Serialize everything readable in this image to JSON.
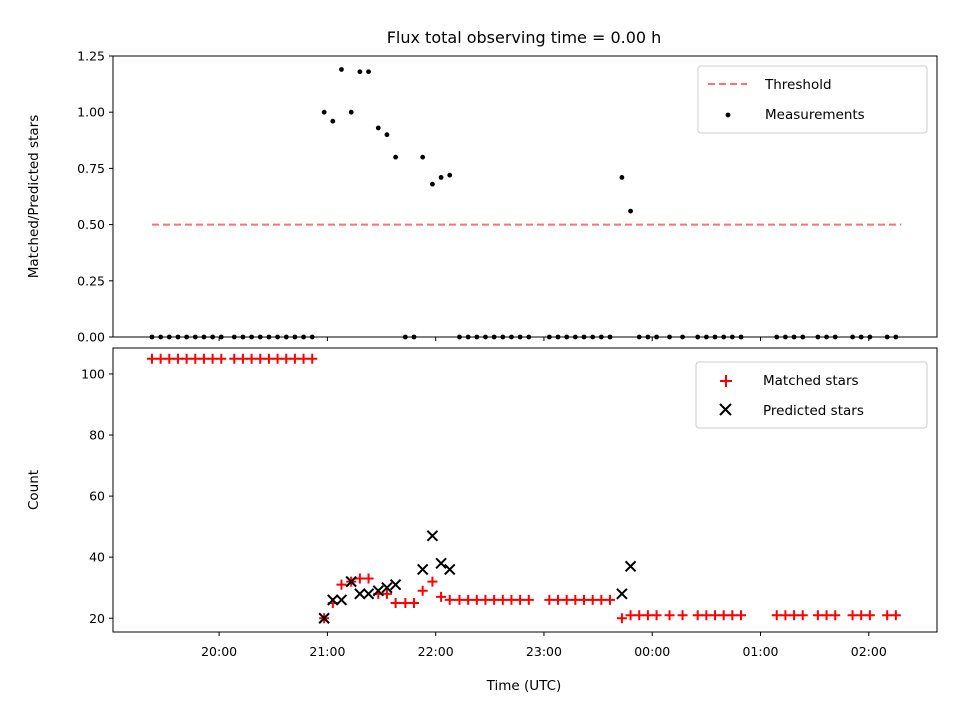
{
  "chart_data": {
    "title": "Flux total observing time = 0.00 h",
    "xlabel": "Time (UTC)",
    "x_ticks": [
      "20:00",
      "21:00",
      "22:00",
      "23:00",
      "00:00",
      "01:00",
      "02:00"
    ],
    "x_tick_values_hours": [
      20,
      21,
      22,
      23,
      24,
      25,
      26
    ],
    "x_range_hours": [
      19.02,
      26.63
    ],
    "panels": [
      {
        "type": "scatter",
        "ylabel": "Matched/Predicted stars",
        "ylim": [
          0,
          1.25
        ],
        "y_ticks": [
          "0.00",
          "0.25",
          "0.50",
          "0.75",
          "1.00",
          "1.25"
        ],
        "legend_position": "top-right",
        "threshold": {
          "name": "Threshold",
          "value": 0.5,
          "x_start_hours": 19.38,
          "x_end_hours": 26.3,
          "color": "#ff6f6f",
          "style": "dashed"
        },
        "series": [
          {
            "name": "Measurements",
            "color": "#000000",
            "marker": "dot",
            "points": [
              [
                19.38,
                0
              ],
              [
                19.46,
                0
              ],
              [
                19.54,
                0
              ],
              [
                19.62,
                0
              ],
              [
                19.7,
                0
              ],
              [
                19.78,
                0
              ],
              [
                19.86,
                0
              ],
              [
                19.94,
                0
              ],
              [
                20.02,
                0
              ],
              [
                20.14,
                0
              ],
              [
                20.22,
                0
              ],
              [
                20.3,
                0
              ],
              [
                20.38,
                0
              ],
              [
                20.46,
                0
              ],
              [
                20.54,
                0
              ],
              [
                20.62,
                0
              ],
              [
                20.7,
                0
              ],
              [
                20.78,
                0
              ],
              [
                20.86,
                0
              ],
              [
                20.97,
                1.0
              ],
              [
                21.05,
                0.96
              ],
              [
                21.13,
                1.19
              ],
              [
                21.22,
                1.0
              ],
              [
                21.3,
                1.18
              ],
              [
                21.38,
                1.18
              ],
              [
                21.47,
                0.93
              ],
              [
                21.55,
                0.9
              ],
              [
                21.63,
                0.8
              ],
              [
                21.72,
                0
              ],
              [
                21.8,
                0
              ],
              [
                21.88,
                0.8
              ],
              [
                21.97,
                0.68
              ],
              [
                22.05,
                0.71
              ],
              [
                22.13,
                0.72
              ],
              [
                22.22,
                0
              ],
              [
                22.3,
                0
              ],
              [
                22.38,
                0
              ],
              [
                22.46,
                0
              ],
              [
                22.54,
                0
              ],
              [
                22.62,
                0
              ],
              [
                22.7,
                0
              ],
              [
                22.78,
                0
              ],
              [
                22.86,
                0
              ],
              [
                23.05,
                0
              ],
              [
                23.13,
                0
              ],
              [
                23.21,
                0
              ],
              [
                23.29,
                0
              ],
              [
                23.37,
                0
              ],
              [
                23.45,
                0
              ],
              [
                23.53,
                0
              ],
              [
                23.61,
                0
              ],
              [
                23.72,
                0.71
              ],
              [
                23.8,
                0.56
              ],
              [
                23.88,
                0
              ],
              [
                23.96,
                0
              ],
              [
                24.04,
                0
              ],
              [
                24.16,
                0
              ],
              [
                24.28,
                0
              ],
              [
                24.42,
                0
              ],
              [
                24.5,
                0
              ],
              [
                24.58,
                0
              ],
              [
                24.66,
                0
              ],
              [
                24.74,
                0
              ],
              [
                24.82,
                0
              ],
              [
                25.15,
                0
              ],
              [
                25.23,
                0
              ],
              [
                25.31,
                0
              ],
              [
                25.39,
                0
              ],
              [
                25.53,
                0
              ],
              [
                25.61,
                0
              ],
              [
                25.69,
                0
              ],
              [
                25.85,
                0
              ],
              [
                25.93,
                0
              ],
              [
                26.01,
                0
              ],
              [
                26.17,
                0
              ],
              [
                26.25,
                0
              ]
            ]
          }
        ]
      },
      {
        "type": "scatter",
        "ylabel": "Count",
        "ylim": [
          15.5,
          108.5
        ],
        "y_ticks": [
          "20",
          "40",
          "60",
          "80",
          "100"
        ],
        "y_tick_values": [
          20,
          40,
          60,
          80,
          100
        ],
        "legend_position": "top-right",
        "series": [
          {
            "name": "Matched stars",
            "color": "#ff0000",
            "marker": "plus",
            "points": [
              [
                19.38,
                105
              ],
              [
                19.46,
                105
              ],
              [
                19.54,
                105
              ],
              [
                19.62,
                105
              ],
              [
                19.7,
                105
              ],
              [
                19.78,
                105
              ],
              [
                19.86,
                105
              ],
              [
                19.94,
                105
              ],
              [
                20.02,
                105
              ],
              [
                20.14,
                105
              ],
              [
                20.22,
                105
              ],
              [
                20.3,
                105
              ],
              [
                20.38,
                105
              ],
              [
                20.46,
                105
              ],
              [
                20.54,
                105
              ],
              [
                20.62,
                105
              ],
              [
                20.7,
                105
              ],
              [
                20.78,
                105
              ],
              [
                20.86,
                105
              ],
              [
                20.97,
                20
              ],
              [
                21.05,
                25
              ],
              [
                21.13,
                31
              ],
              [
                21.22,
                32
              ],
              [
                21.3,
                33
              ],
              [
                21.38,
                33
              ],
              [
                21.47,
                28
              ],
              [
                21.55,
                28
              ],
              [
                21.63,
                25
              ],
              [
                21.72,
                25
              ],
              [
                21.8,
                25
              ],
              [
                21.88,
                29
              ],
              [
                21.97,
                32
              ],
              [
                22.05,
                27
              ],
              [
                22.13,
                26
              ],
              [
                22.22,
                26
              ],
              [
                22.3,
                26
              ],
              [
                22.38,
                26
              ],
              [
                22.46,
                26
              ],
              [
                22.54,
                26
              ],
              [
                22.62,
                26
              ],
              [
                22.7,
                26
              ],
              [
                22.78,
                26
              ],
              [
                22.86,
                26
              ],
              [
                23.05,
                26
              ],
              [
                23.13,
                26
              ],
              [
                23.21,
                26
              ],
              [
                23.29,
                26
              ],
              [
                23.37,
                26
              ],
              [
                23.45,
                26
              ],
              [
                23.53,
                26
              ],
              [
                23.61,
                26
              ],
              [
                23.72,
                20
              ],
              [
                23.8,
                21
              ],
              [
                23.88,
                21
              ],
              [
                23.96,
                21
              ],
              [
                24.04,
                21
              ],
              [
                24.16,
                21
              ],
              [
                24.28,
                21
              ],
              [
                24.42,
                21
              ],
              [
                24.5,
                21
              ],
              [
                24.58,
                21
              ],
              [
                24.66,
                21
              ],
              [
                24.74,
                21
              ],
              [
                24.82,
                21
              ],
              [
                25.15,
                21
              ],
              [
                25.23,
                21
              ],
              [
                25.31,
                21
              ],
              [
                25.39,
                21
              ],
              [
                25.53,
                21
              ],
              [
                25.61,
                21
              ],
              [
                25.69,
                21
              ],
              [
                25.85,
                21
              ],
              [
                25.93,
                21
              ],
              [
                26.01,
                21
              ],
              [
                26.17,
                21
              ],
              [
                26.25,
                21
              ]
            ]
          },
          {
            "name": "Predicted stars",
            "color": "#000000",
            "marker": "x",
            "points": [
              [
                20.97,
                20
              ],
              [
                21.05,
                26
              ],
              [
                21.13,
                26
              ],
              [
                21.22,
                32
              ],
              [
                21.3,
                28
              ],
              [
                21.38,
                28
              ],
              [
                21.47,
                29
              ],
              [
                21.55,
                30
              ],
              [
                21.63,
                31
              ],
              [
                21.88,
                36
              ],
              [
                21.97,
                47
              ],
              [
                22.05,
                38
              ],
              [
                22.13,
                36
              ],
              [
                23.72,
                28
              ],
              [
                23.8,
                37
              ]
            ]
          }
        ]
      }
    ]
  }
}
